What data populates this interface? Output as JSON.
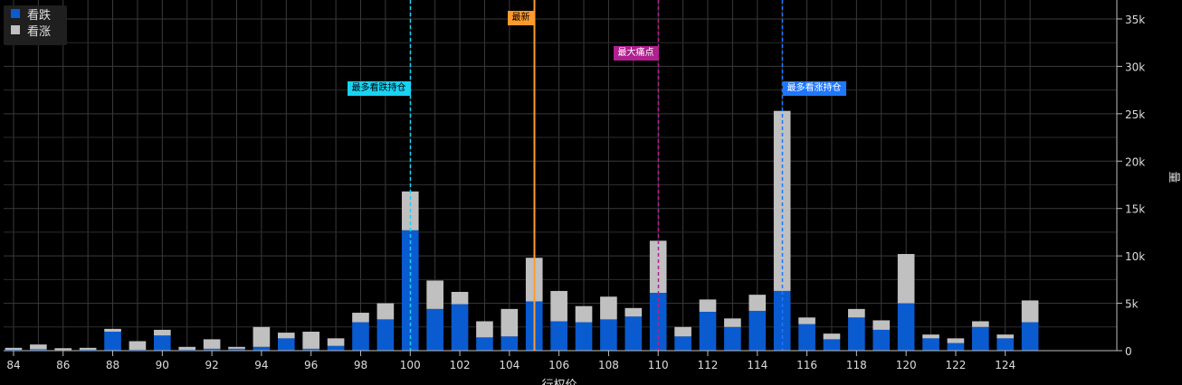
{
  "chart_data": {
    "type": "bar",
    "stacked": true,
    "x": [
      84,
      85,
      86,
      87,
      88,
      89,
      90,
      91,
      92,
      93,
      94,
      95,
      96,
      97,
      98,
      99,
      100,
      101,
      102,
      103,
      104,
      105,
      106,
      107,
      108,
      109,
      110,
      111,
      112,
      113,
      114,
      115,
      116,
      117,
      118,
      119,
      120,
      121,
      122,
      123,
      124,
      125
    ],
    "series": [
      {
        "name": "看跌",
        "color": "#0a5bd0",
        "values": [
          100,
          150,
          60,
          100,
          2000,
          100,
          1600,
          100,
          200,
          200,
          400,
          1300,
          200,
          500,
          3000,
          3300,
          12700,
          4400,
          4900,
          1400,
          1500,
          5200,
          3100,
          3000,
          3300,
          3600,
          6100,
          1500,
          4100,
          2500,
          4200,
          6300,
          2800,
          1200,
          3500,
          2200,
          5000,
          1300,
          800,
          2500,
          1300,
          3000
        ]
      },
      {
        "name": "看涨",
        "color": "#c0c0c0",
        "values": [
          200,
          500,
          200,
          200,
          300,
          900,
          600,
          300,
          1000,
          200,
          2100,
          600,
          1800,
          800,
          1000,
          1700,
          4100,
          3000,
          1300,
          1700,
          2900,
          4600,
          3200,
          1700,
          2400,
          900,
          5500,
          1000,
          1300,
          900,
          1700,
          19000,
          700,
          600,
          900,
          1000,
          5200,
          400,
          500,
          600,
          400,
          2300
        ]
      }
    ],
    "xlabel": "行权价",
    "ylabel": "量",
    "xlim": [
      83.6,
      128.5
    ],
    "ylim": [
      0,
      37000
    ],
    "x_ticks": [
      84,
      86,
      88,
      90,
      92,
      94,
      96,
      98,
      100,
      102,
      104,
      106,
      108,
      110,
      112,
      114,
      116,
      118,
      120,
      122,
      124
    ],
    "y_ticks": [
      "0",
      "5k",
      "10k",
      "15k",
      "20k",
      "25k",
      "30k",
      "35k"
    ],
    "y_tick_values": [
      0,
      5000,
      10000,
      15000,
      20000,
      25000,
      30000,
      35000
    ],
    "grid": true,
    "legend_position": "top-left",
    "annotations": [
      {
        "label": "最多看跌持仓",
        "x": 100,
        "color": "#19d3f3",
        "style": "dashed",
        "text_color": "#000000"
      },
      {
        "label": "最新",
        "x": 105,
        "color": "#ff9a2e",
        "style": "solid",
        "text_color": "#000000"
      },
      {
        "label": "最大痛点",
        "x": 110,
        "color": "#b0208f",
        "style": "dashed",
        "text_color": "#ffffff"
      },
      {
        "label": "最多看涨持仓",
        "x": 115,
        "color": "#1e77ff",
        "style": "dashed",
        "text_color": "#ffffff"
      }
    ]
  }
}
